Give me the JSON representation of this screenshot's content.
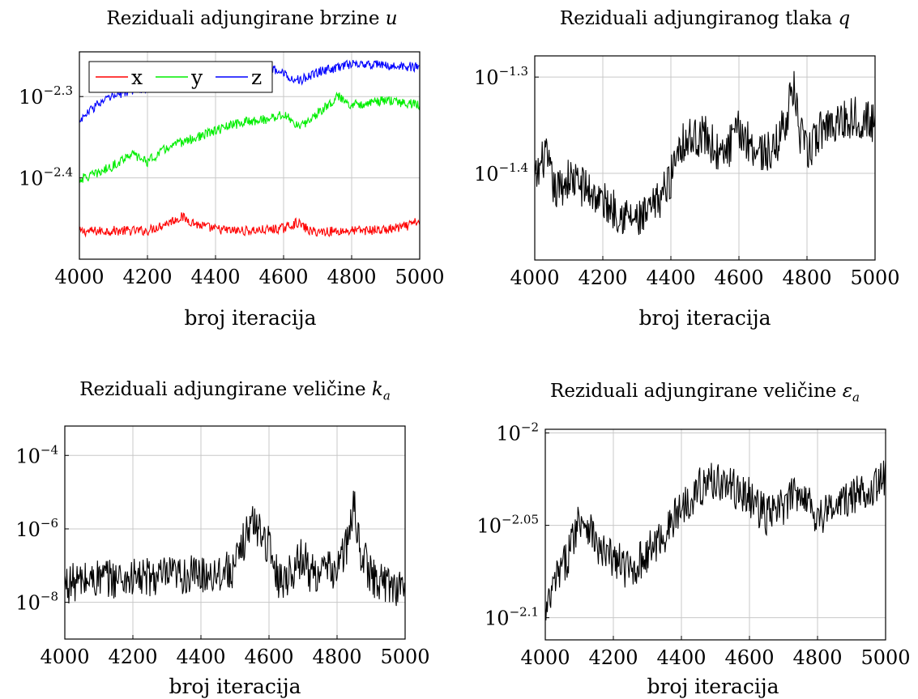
{
  "chart_data": [
    {
      "type": "line",
      "title_text": "Reziduali adjungirane brzine ",
      "title_symbol": "u",
      "xlabel": "broj iteracija",
      "ylabel": "",
      "yscale": "log",
      "xlim": [
        4000,
        5000
      ],
      "ylim_log10": [
        -2.5,
        -2.245
      ],
      "xticks": [
        "4000",
        "4200",
        "4400",
        "4600",
        "4800",
        "5000"
      ],
      "yticks": [
        {
          "exp": "−2.3",
          "log10": -2.3
        },
        {
          "exp": "−2.4",
          "log10": -2.4
        }
      ],
      "grid": true,
      "legend": {
        "placement": "top-left",
        "entries": [
          "x",
          "y",
          "z"
        ]
      },
      "series": [
        {
          "name": "x",
          "color": "#ff0000",
          "noise": 0.006,
          "x": [
            4000,
            4100,
            4200,
            4260,
            4300,
            4350,
            4400,
            4450,
            4500,
            4550,
            4600,
            4640,
            4680,
            4720,
            4800,
            4900,
            4960,
            5000
          ],
          "log10_y": [
            -2.466,
            -2.465,
            -2.465,
            -2.455,
            -2.448,
            -2.458,
            -2.463,
            -2.465,
            -2.465,
            -2.464,
            -2.462,
            -2.455,
            -2.466,
            -2.466,
            -2.465,
            -2.464,
            -2.46,
            -2.453
          ]
        },
        {
          "name": "y",
          "color": "#00ee00",
          "noise": 0.006,
          "x": [
            4000,
            4050,
            4100,
            4150,
            4200,
            4250,
            4300,
            4350,
            4400,
            4450,
            4500,
            4550,
            4600,
            4650,
            4700,
            4760,
            4800,
            4900,
            5000
          ],
          "log10_y": [
            -2.402,
            -2.395,
            -2.385,
            -2.37,
            -2.38,
            -2.365,
            -2.356,
            -2.35,
            -2.342,
            -2.335,
            -2.33,
            -2.328,
            -2.322,
            -2.338,
            -2.32,
            -2.3,
            -2.31,
            -2.305,
            -2.31
          ]
        },
        {
          "name": "z",
          "color": "#0000ff",
          "noise": 0.006,
          "x": [
            4000,
            4050,
            4100,
            4150,
            4200,
            4250,
            4300,
            4350,
            4400,
            4450,
            4500,
            4550,
            4600,
            4650,
            4700,
            4800,
            4900,
            5000
          ],
          "log10_y": [
            -2.33,
            -2.31,
            -2.3,
            -2.292,
            -2.29,
            -2.278,
            -2.272,
            -2.265,
            -2.262,
            -2.268,
            -2.27,
            -2.262,
            -2.272,
            -2.28,
            -2.27,
            -2.26,
            -2.262,
            -2.264
          ]
        }
      ]
    },
    {
      "type": "line",
      "title_text": "Reziduali adjungiranog tlaka ",
      "title_symbol": "q",
      "xlabel": "broj iteracija",
      "ylabel": "",
      "yscale": "log",
      "xlim": [
        4000,
        5000
      ],
      "ylim_log10": [
        -1.49,
        -1.278
      ],
      "xticks": [
        "4000",
        "4200",
        "4400",
        "4600",
        "4800",
        "5000"
      ],
      "yticks": [
        {
          "exp": "−1.3",
          "log10": -1.3
        },
        {
          "exp": "−1.4",
          "log10": -1.4
        }
      ],
      "grid": true,
      "legend": null,
      "series": [
        {
          "name": "",
          "color": "#000000",
          "noise": 0.022,
          "x": [
            4000,
            4030,
            4060,
            4100,
            4150,
            4200,
            4250,
            4300,
            4330,
            4360,
            4400,
            4420,
            4450,
            4500,
            4550,
            4600,
            4650,
            4700,
            4740,
            4760,
            4780,
            4800,
            4850,
            4900,
            4950,
            5000
          ],
          "log10_y": [
            -1.41,
            -1.38,
            -1.42,
            -1.405,
            -1.415,
            -1.43,
            -1.44,
            -1.45,
            -1.445,
            -1.43,
            -1.405,
            -1.37,
            -1.365,
            -1.36,
            -1.385,
            -1.355,
            -1.375,
            -1.38,
            -1.34,
            -1.31,
            -1.36,
            -1.38,
            -1.35,
            -1.345,
            -1.34,
            -1.35
          ]
        }
      ]
    },
    {
      "type": "line",
      "title_text": "Reziduali adjungirane veličine ",
      "title_symbol": "k",
      "title_subscript": "a",
      "xlabel": "broj iteracija",
      "ylabel": "",
      "yscale": "log",
      "xlim": [
        4000,
        5000
      ],
      "ylim_log10": [
        -9.0,
        -3.2
      ],
      "xticks": [
        "4000",
        "4200",
        "4400",
        "4600",
        "4800",
        "5000"
      ],
      "yticks": [
        {
          "exp": "−4",
          "log10": -4
        },
        {
          "exp": "−6",
          "log10": -6
        },
        {
          "exp": "−8",
          "log10": -8
        }
      ],
      "grid": true,
      "legend": null,
      "series": [
        {
          "name": "",
          "color": "#000000",
          "noise": 0.55,
          "x": [
            4000,
            4100,
            4200,
            4300,
            4400,
            4500,
            4530,
            4550,
            4580,
            4600,
            4630,
            4650,
            4680,
            4700,
            4720,
            4800,
            4830,
            4850,
            4870,
            4900,
            4950,
            5000
          ],
          "log10_y": [
            -7.5,
            -7.35,
            -7.35,
            -7.3,
            -7.25,
            -7.1,
            -6.2,
            -5.8,
            -6.1,
            -6.5,
            -7.4,
            -7.3,
            -7.0,
            -6.7,
            -7.2,
            -7.1,
            -6.4,
            -5.4,
            -6.6,
            -7.3,
            -7.5,
            -7.6
          ]
        }
      ]
    },
    {
      "type": "line",
      "title_text": "Reziduali adjungirane veličine ",
      "title_symbol": "ε",
      "title_subscript": "a",
      "xlabel": "broj iteracija",
      "ylabel": "",
      "yscale": "log",
      "xlim": [
        4000,
        5000
      ],
      "ylim_log10": [
        -2.112,
        -1.998
      ],
      "xticks": [
        "4000",
        "4200",
        "4400",
        "4600",
        "4800",
        "5000"
      ],
      "yticks": [
        {
          "exp": "−2",
          "log10": -2.0
        },
        {
          "exp": "−2.05",
          "log10": -2.05
        },
        {
          "exp": "−2.1",
          "log10": -2.1
        }
      ],
      "grid": true,
      "legend": null,
      "series": [
        {
          "name": "",
          "color": "#000000",
          "noise": 0.011,
          "x": [
            4000,
            4030,
            4060,
            4100,
            4130,
            4160,
            4200,
            4250,
            4300,
            4350,
            4400,
            4450,
            4500,
            4550,
            4600,
            4650,
            4700,
            4750,
            4800,
            4850,
            4900,
            4950,
            5000
          ],
          "log10_y": [
            -2.1,
            -2.08,
            -2.07,
            -2.045,
            -2.05,
            -2.065,
            -2.068,
            -2.075,
            -2.065,
            -2.055,
            -2.04,
            -2.03,
            -2.025,
            -2.03,
            -2.035,
            -2.045,
            -2.04,
            -2.03,
            -2.045,
            -2.04,
            -2.035,
            -2.03,
            -2.025
          ]
        }
      ]
    }
  ]
}
